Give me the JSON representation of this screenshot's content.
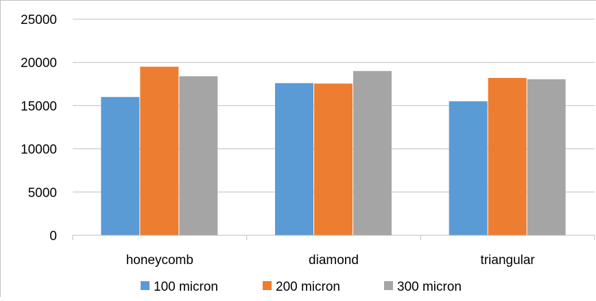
{
  "chart_data": {
    "type": "bar",
    "categories": [
      "honeycomb",
      "diamond",
      "triangular"
    ],
    "series": [
      {
        "name": "100 micron",
        "color": "#5b9bd5",
        "values": [
          16000,
          17600,
          15500
        ]
      },
      {
        "name": "200 micron",
        "color": "#ed7d31",
        "values": [
          19500,
          17550,
          18200
        ]
      },
      {
        "name": "300 micron",
        "color": "#a5a5a5",
        "values": [
          18400,
          19000,
          18050
        ]
      }
    ],
    "ylim": [
      0,
      25000
    ],
    "yticks": [
      "0",
      "5000",
      "10000",
      "15000",
      "20000",
      "25000"
    ],
    "grid": true,
    "legend_position": "bottom",
    "title": "",
    "xlabel": "",
    "ylabel": ""
  }
}
